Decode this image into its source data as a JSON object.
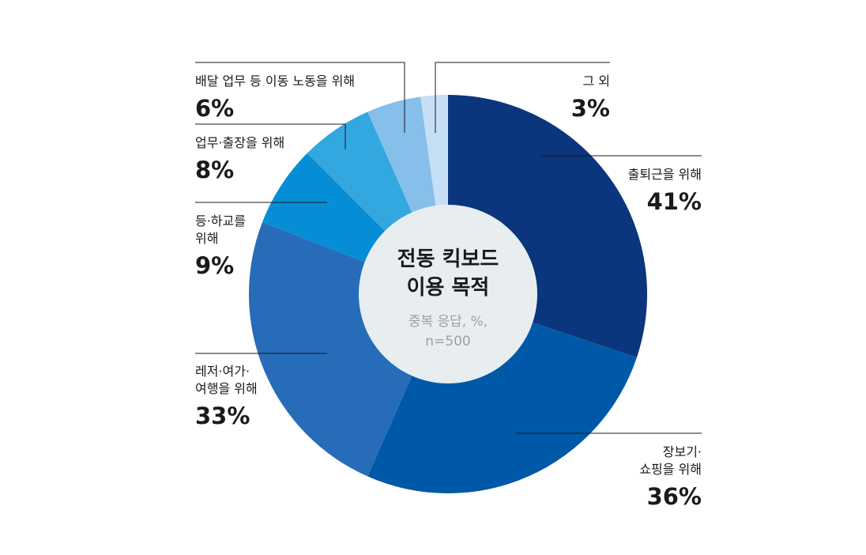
{
  "chart_data": {
    "type": "donut",
    "title": [
      "전동 킥보드",
      "이용 목적"
    ],
    "subtitle": [
      "중복 응답, %,",
      "n=500"
    ],
    "slices": [
      {
        "label": [
          "출퇴근을 위해"
        ],
        "value": 41,
        "display": "41%",
        "color": "#0b357c"
      },
      {
        "label": [
          "장보기·",
          "쇼핑을 위해"
        ],
        "value": 36,
        "display": "36%",
        "color": "#0058a8"
      },
      {
        "label": [
          "레저·여가·",
          "여행을 위해"
        ],
        "value": 33,
        "display": "33%",
        "color": "#276cb9"
      },
      {
        "label": [
          "등·하교를",
          "위해"
        ],
        "value": 9,
        "display": "9%",
        "color": "#058ed6"
      },
      {
        "label": [
          "업무·출장을 위해"
        ],
        "value": 8,
        "display": "8%",
        "color": "#33a7e0"
      },
      {
        "label": [
          "배달 업무 등 이동 노동을 위해"
        ],
        "value": 6,
        "display": "6%",
        "color": "#85bfea"
      },
      {
        "label": [
          "그 외"
        ],
        "value": 3,
        "display": "3%",
        "color": "#c6dff5"
      }
    ],
    "center_color": "#e8eef0"
  }
}
